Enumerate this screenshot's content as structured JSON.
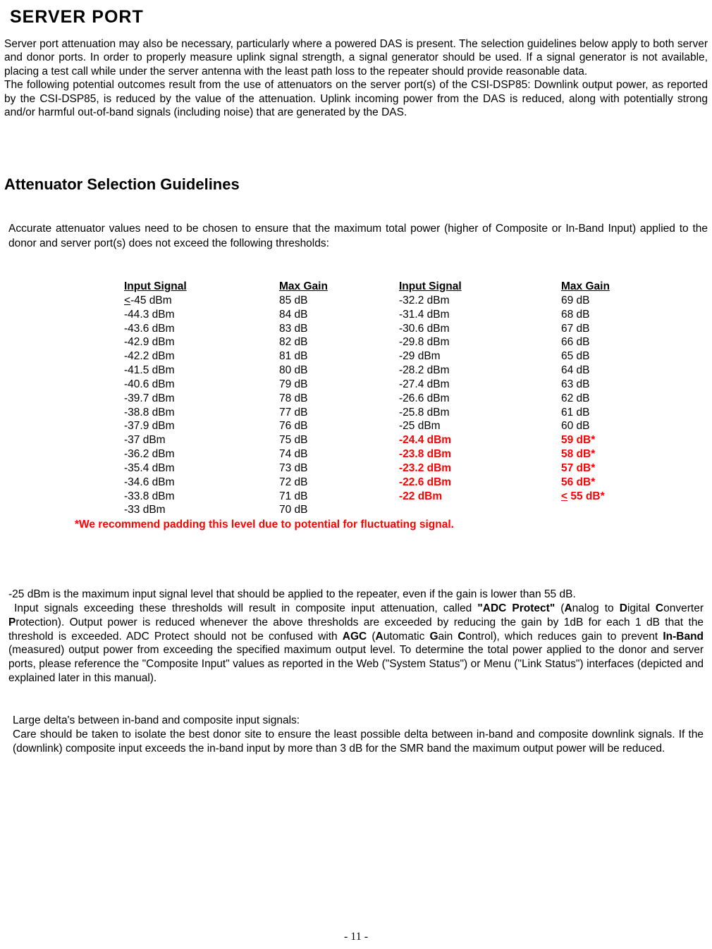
{
  "title": "SERVER PORT",
  "para1a": "Server port attenuation may also be necessary, particularly where a powered DAS is present.  The selection guidelines below apply to both server and donor ports.  In order to properly measure uplink signal strength, a signal generator should be used.  If a signal generator is not available, placing a test call while under the server antenna with the least path loss to the repeater should provide reasonable data.",
  "para1b": "The following potential outcomes result from the use of attenuators on the server port(s) of the CSI-DSP85:  Downlink output power, as reported by the CSI-DSP85, is reduced by the value of the attenuation.  Uplink incoming power from the DAS is reduced, along with potentially strong and/or harmful out-of-band signals (including noise) that are generated by the DAS.",
  "subhead": "Attenuator Selection Guidelines",
  "para2": "Accurate attenuator values need to be chosen to ensure that the maximum total power (higher of Composite or In-Band Input) applied to the donor and server port(s) does not exceed the following thresholds:",
  "table": {
    "headers": [
      "Input Signal",
      "Max Gain",
      "Input Signal",
      "Max Gain"
    ],
    "rows": [
      {
        "c1": "<-45 dBm",
        "c1u": true,
        "c2": "85 dB",
        "c3": "-32.2 dBm",
        "c4": "69 dB",
        "red": false
      },
      {
        "c1": "-44.3 dBm",
        "c1u": false,
        "c2": "84 dB",
        "c3": "-31.4 dBm",
        "c4": "68 dB",
        "red": false
      },
      {
        "c1": "-43.6 dBm",
        "c1u": false,
        "c2": "83 dB",
        "c3": " -30.6 dBm",
        "c4": "67 dB",
        "red": false
      },
      {
        "c1": "-42.9 dBm",
        "c1u": false,
        "c2": "82 dB",
        "c3": "-29.8 dBm",
        "c4": "66 dB",
        "red": false
      },
      {
        "c1": "-42.2 dBm",
        "c1u": false,
        "c2": "81 dB",
        "c3": "-29 dBm",
        "c4": "65 dB",
        "red": false
      },
      {
        "c1": "-41.5 dBm",
        "c1u": false,
        "c2": "80 dB",
        "c3": "-28.2 dBm",
        "c4": "64 dB",
        "red": false
      },
      {
        "c1": "-40.6 dBm",
        "c1u": false,
        "c2": "79 dB",
        "c3": "-27.4 dBm",
        "c4": "63 dB",
        "red": false
      },
      {
        "c1": "-39.7 dBm",
        "c1u": false,
        "c2": "78 dB",
        "c3": "-26.6 dBm",
        "c4": "62 dB",
        "red": false
      },
      {
        "c1": "-38.8 dBm",
        "c1u": false,
        "c2": "77 dB",
        "c3": "-25.8 dBm",
        "c4": "61 dB",
        "red": false
      },
      {
        "c1": "-37.9 dBm",
        "c1u": false,
        "c2": "76 dB",
        "c3": " -25 dBm",
        "c4": "60 dB",
        "red": false
      },
      {
        "c1": "-37 dBm",
        "c1u": false,
        "c2": "75 dB",
        "c3": " -24.4 dBm",
        "c4": "59 dB*",
        "red": true
      },
      {
        "c1": "-36.2 dBm",
        "c1u": false,
        "c2": "74 dB",
        "c3": " -23.8 dBm",
        "c4": "58 dB*",
        "red": true
      },
      {
        "c1": "-35.4 dBm",
        "c1u": false,
        "c2": "73 dB",
        "c3": " -23.2 dBm",
        "c4": "57 dB*",
        "red": true
      },
      {
        "c1": "-34.6 dBm",
        "c1u": false,
        "c2": " 72 dB",
        "c3": " -22.6 dBm",
        "c4": "56 dB*",
        "red": true
      },
      {
        "c1": "-33.8 dBm",
        "c1u": false,
        "c2": "71 dB",
        "c3": " -22 dBm",
        "c4": "< 55 dB*",
        "c4u": true,
        "red": true
      },
      {
        "c1": "-33 dBm",
        "c1u": false,
        "c2": "70 dB",
        "c3": "",
        "c4": "",
        "red": false
      }
    ]
  },
  "footnote": "*We recommend padding this level due to potential for fluctuating signal.",
  "para3_pre": "-25 dBm is the maximum input signal level that should be applied to the repeater, even if the gain is lower than 55 dB.\n Input signals exceeding these thresholds will result in composite input attenuation, called ",
  "para3_b1": "\"ADC Protect\"",
  "para3_mid1": " (",
  "para3_b2": "A",
  "para3_mid2": "nalog to ",
  "para3_b3": "D",
  "para3_mid3": "igital ",
  "para3_b4": "C",
  "para3_mid4": "onverter ",
  "para3_b5": "P",
  "para3_mid5": "rotection). Output power is reduced whenever the above thresholds are exceeded by reducing the gain by 1dB for each 1 dB that the threshold is exceeded. ADC Protect should not be confused with ",
  "para3_b6": "AGC",
  "para3_mid6": " (",
  "para3_b7": "A",
  "para3_mid7": "utomatic ",
  "para3_b8": "G",
  "para3_mid8": "ain ",
  "para3_b9": "C",
  "para3_mid9": "ontrol), which reduces gain to prevent ",
  "para3_b10": "In-Band",
  "para3_post": " (measured) output power from exceeding the specified maximum output level. To determine the total power applied to the donor and server ports, please reference the \"Composite Input\" values as reported in the Web (\"System Status\") or Menu (\"Link Status\") interfaces (depicted and explained later in this manual).",
  "para4a": "Large delta's between in-band and composite input signals:",
  "para4b": "Care should be taken to isolate the best donor site to ensure the least possible delta between in-band and composite downlink signals. If the (downlink) composite input exceeds the in-band input by more than 3 dB for the SMR band  the maximum output power will be reduced.",
  "pagenum": "- 11 -"
}
